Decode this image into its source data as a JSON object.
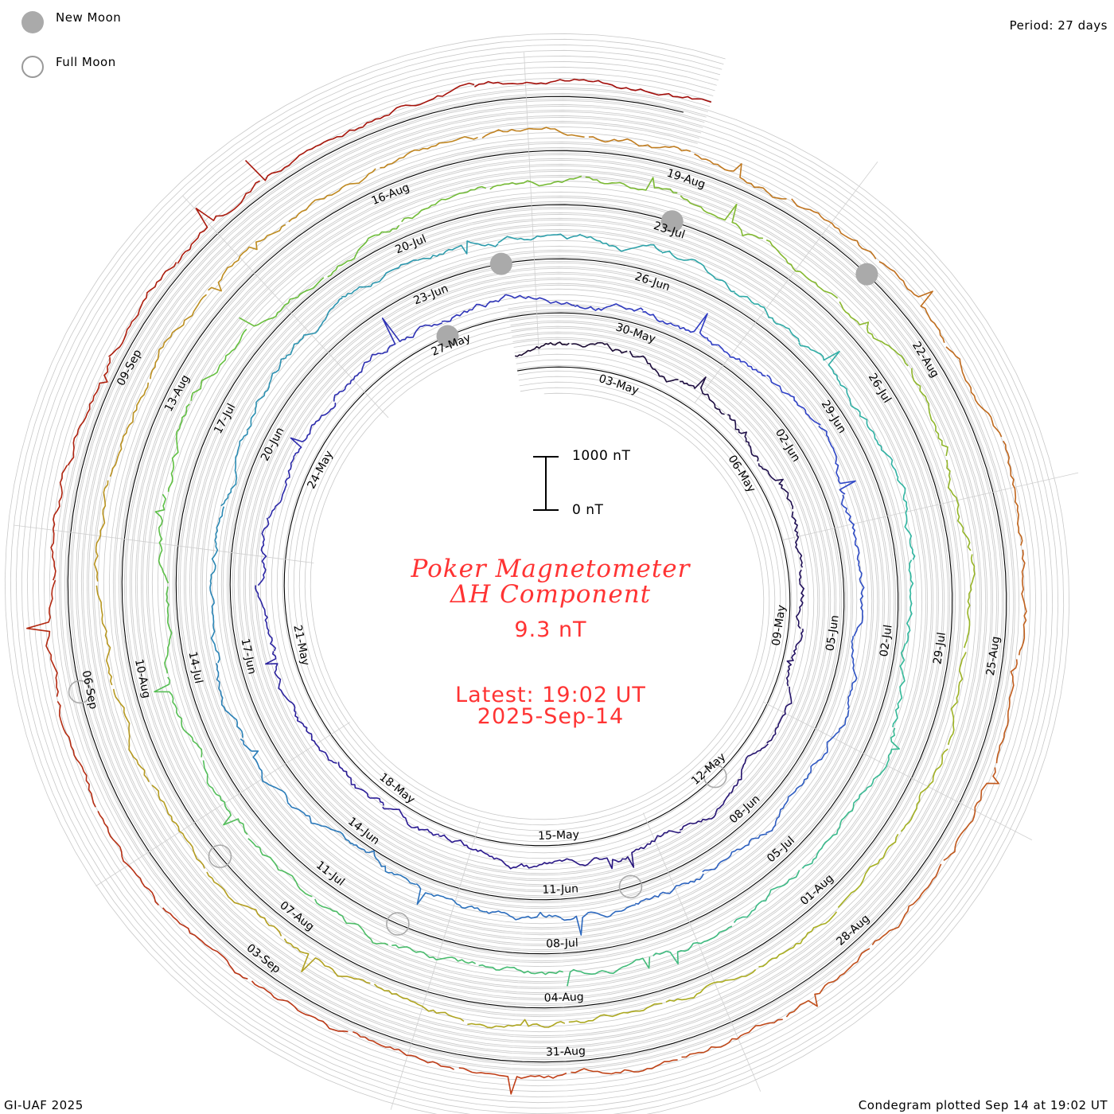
{
  "legend": {
    "new_moon_label": "New Moon",
    "full_moon_label": "Full Moon",
    "new_moon_color": "#aaaaaa",
    "full_moon_color": "#999999"
  },
  "period_label": "Period: 27 days",
  "footer_left": "GI-UAF 2025",
  "footer_right": "Condegram plotted Sep 14 at 19:02 UT",
  "title_line1": "Poker Magnetometer",
  "title_line2": "ΔH Component",
  "current_value": "9.3 nT",
  "latest_label": "Latest: 19:02 UT",
  "latest_date": "2025-Sep-14",
  "scale_bar": {
    "top_label": "1000 nT",
    "bottom_label": "0 nT",
    "top_value_nT": 1000,
    "bottom_value_nT": 0
  },
  "chart_data": {
    "type": "line",
    "subtype": "condegram-spiral",
    "title": "Poker Magnetometer ΔH Component",
    "period_days": 27,
    "units": "nT",
    "start_date": "2025-05-01",
    "end_date": "2025-09-14",
    "date_ticks": [
      {
        "label": "03-May",
        "day": 2
      },
      {
        "label": "06-May",
        "day": 5
      },
      {
        "label": "09-May",
        "day": 8
      },
      {
        "label": "12-May",
        "day": 11
      },
      {
        "label": "15-May",
        "day": 14
      },
      {
        "label": "18-May",
        "day": 17
      },
      {
        "label": "21-May",
        "day": 20
      },
      {
        "label": "24-May",
        "day": 23
      },
      {
        "label": "27-May",
        "day": 26
      },
      {
        "label": "30-May",
        "day": 29
      },
      {
        "label": "02-Jun",
        "day": 32
      },
      {
        "label": "05-Jun",
        "day": 35
      },
      {
        "label": "08-Jun",
        "day": 38
      },
      {
        "label": "11-Jun",
        "day": 41
      },
      {
        "label": "14-Jun",
        "day": 44
      },
      {
        "label": "17-Jun",
        "day": 47
      },
      {
        "label": "20-Jun",
        "day": 50
      },
      {
        "label": "23-Jun",
        "day": 53
      },
      {
        "label": "26-Jun",
        "day": 56
      },
      {
        "label": "29-Jun",
        "day": 59
      },
      {
        "label": "02-Jul",
        "day": 62
      },
      {
        "label": "05-Jul",
        "day": 65
      },
      {
        "label": "08-Jul",
        "day": 68
      },
      {
        "label": "11-Jul",
        "day": 71
      },
      {
        "label": "14-Jul",
        "day": 74
      },
      {
        "label": "17-Jul",
        "day": 77
      },
      {
        "label": "20-Jul",
        "day": 80
      },
      {
        "label": "23-Jul",
        "day": 83
      },
      {
        "label": "26-Jul",
        "day": 86
      },
      {
        "label": "29-Jul",
        "day": 89
      },
      {
        "label": "01-Aug",
        "day": 92
      },
      {
        "label": "04-Aug",
        "day": 95
      },
      {
        "label": "07-Aug",
        "day": 98
      },
      {
        "label": "10-Aug",
        "day": 101
      },
      {
        "label": "13-Aug",
        "day": 104
      },
      {
        "label": "16-Aug",
        "day": 107
      },
      {
        "label": "19-Aug",
        "day": 110
      },
      {
        "label": "22-Aug",
        "day": 113
      },
      {
        "label": "25-Aug",
        "day": 116
      },
      {
        "label": "28-Aug",
        "day": 119
      },
      {
        "label": "31-Aug",
        "day": 122
      },
      {
        "label": "03-Sep",
        "day": 125
      },
      {
        "label": "06-Sep",
        "day": 128
      },
      {
        "label": "09-Sep",
        "day": 131
      }
    ],
    "new_moons_day": [
      26,
      54,
      83,
      112
    ],
    "full_moons_day": [
      11,
      40,
      70,
      99,
      128
    ],
    "series": [
      {
        "name": "ΔH",
        "color_ramp": [
          "#1a0a2e",
          "#2a1890",
          "#3040c8",
          "#2a80b8",
          "#30b8a0",
          "#60c040",
          "#a8b020",
          "#c08820",
          "#c04018",
          "#a00808"
        ]
      }
    ]
  }
}
